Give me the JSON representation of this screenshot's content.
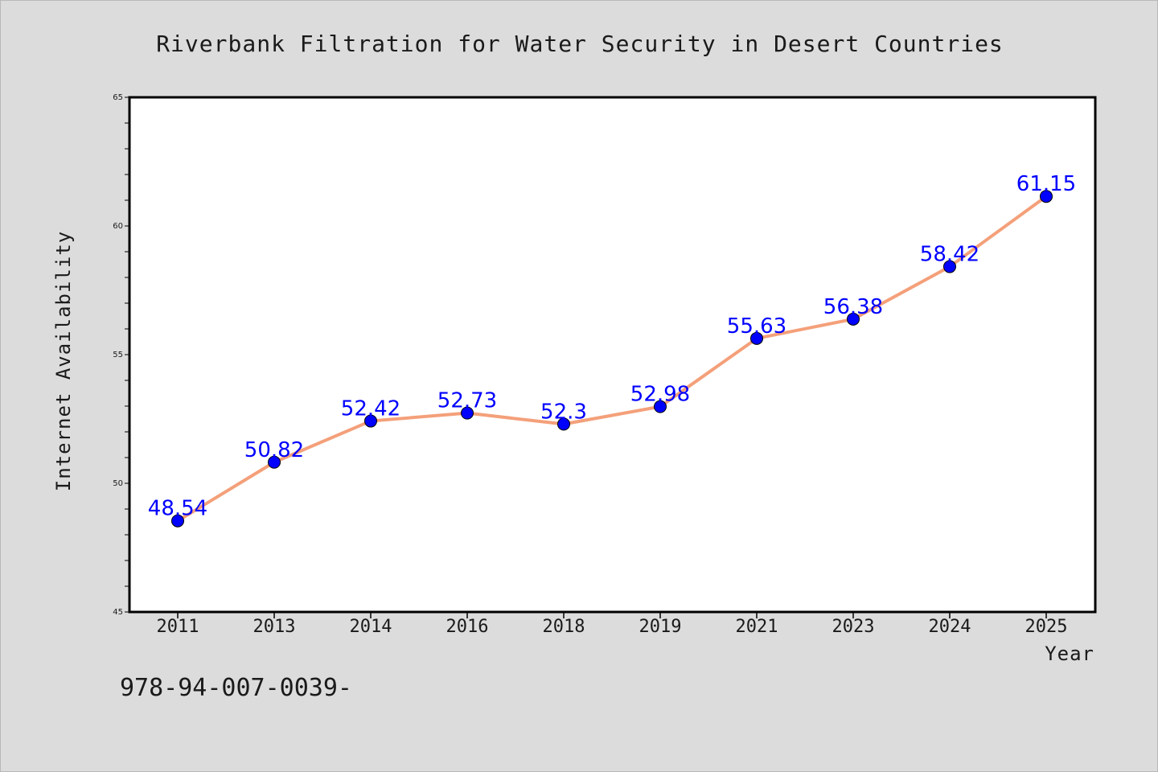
{
  "chart_data": {
    "type": "line",
    "title": "Riverbank Filtration for Water Security in Desert Countries",
    "xlabel": "Year",
    "ylabel": "Internet Availability",
    "categories": [
      "2011",
      "2013",
      "2014",
      "2016",
      "2018",
      "2019",
      "2021",
      "2023",
      "2024",
      "2025"
    ],
    "values": [
      48.54,
      50.82,
      52.42,
      52.73,
      52.3,
      52.98,
      55.63,
      56.38,
      58.42,
      61.15
    ],
    "data_labels": [
      "48.54",
      "50.82",
      "52.42",
      "52.73",
      "52.3",
      "52.98",
      "55.63",
      "56.38",
      "58.42",
      "61.15"
    ],
    "ylim": [
      45,
      65
    ],
    "yticks": [
      45,
      50,
      55,
      60,
      65
    ],
    "grid": false,
    "legend": "none",
    "colors": {
      "line": "#f4a07a",
      "marker": "#0000ff",
      "data_label": "#0000ff"
    }
  },
  "footnote": "978-94-007-0039-"
}
